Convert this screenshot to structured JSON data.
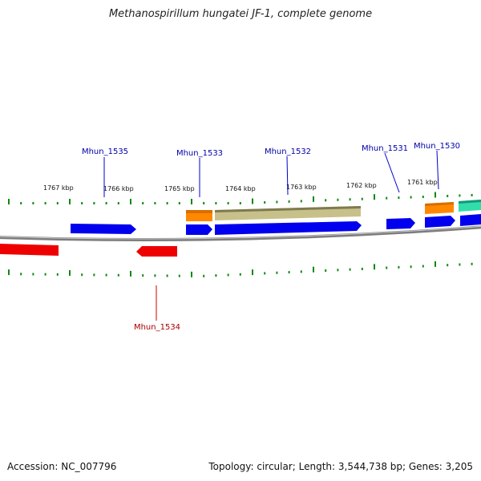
{
  "title": "Methanospirillum hungatei JF-1, complete genome",
  "accession": "Accession: NC_007796",
  "summary": "Topology: circular; Length: 3,544,738 bp; Genes: 3,205",
  "scale_labels": [
    "1767 kbp",
    "1766 kbp",
    "1765 kbp",
    "1764 kbp",
    "1763 kbp",
    "1762 kbp",
    "1761 kbp"
  ],
  "colors": {
    "forward_gene": "#0000ee",
    "reverse_gene": "#ee0000",
    "feature_orange": "#ff8800",
    "feature_olive": "#c8c08a",
    "feature_teal": "#33ddaa",
    "tick": "#118811",
    "backbone": "#888888"
  },
  "gene_labels": [
    {
      "name": "Mhun_1535",
      "strand": "forward"
    },
    {
      "name": "Mhun_1533",
      "strand": "forward"
    },
    {
      "name": "Mhun_1532",
      "strand": "forward"
    },
    {
      "name": "Mhun_1531",
      "strand": "forward"
    },
    {
      "name": "Mhun_1530",
      "strand": "forward"
    },
    {
      "name": "Mhun_1534",
      "strand": "reverse"
    }
  ]
}
